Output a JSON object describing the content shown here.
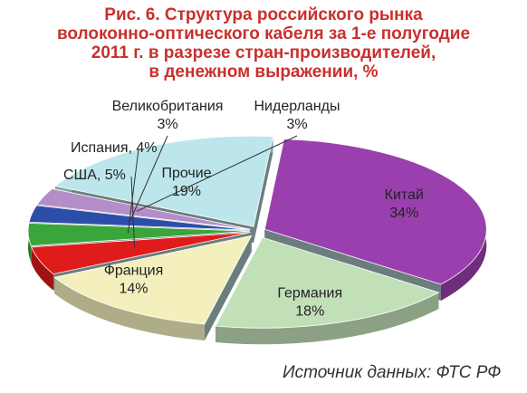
{
  "title_lines": [
    "Рис. 6. Структура российского рынка",
    "волоконно-оптического кабеля за 1-е полугодие",
    "2011 г. в разрезе стран-производителей,",
    "в денежном выражении, %"
  ],
  "source": "Источник данных: ФТС РФ",
  "chart_data": {
    "type": "pie",
    "title": "Рис. 6. Структура российского рынка волоконно-оптического кабеля за 1-е полугодие 2011 г. в разрезе стран-производителей, в денежном выражении, %",
    "unit": "%",
    "style": "3d-exploded",
    "slices": [
      {
        "name": "Китай",
        "value": 34,
        "value_label": "34%",
        "color": "#9a3fae"
      },
      {
        "name": "Германия",
        "value": 18,
        "value_label": "18%",
        "color": "#c2e0b8"
      },
      {
        "name": "Франция",
        "value": 14,
        "value_label": "14%",
        "color": "#f3f0bd"
      },
      {
        "name": "США",
        "value": 5,
        "value_label": "5%",
        "color": "#e01b1b"
      },
      {
        "name": "Испания",
        "value": 4,
        "value_label": "4%",
        "color": "#3aa53a"
      },
      {
        "name": "Великобритания",
        "value": 3,
        "value_label": "3%",
        "color": "#2d4ea8"
      },
      {
        "name": "Нидерланды",
        "value": 3,
        "value_label": "3%",
        "color": "#b48ec8"
      },
      {
        "name": "Прочие",
        "value": 19,
        "value_label": "19%",
        "color": "#bde6ec"
      }
    ]
  }
}
